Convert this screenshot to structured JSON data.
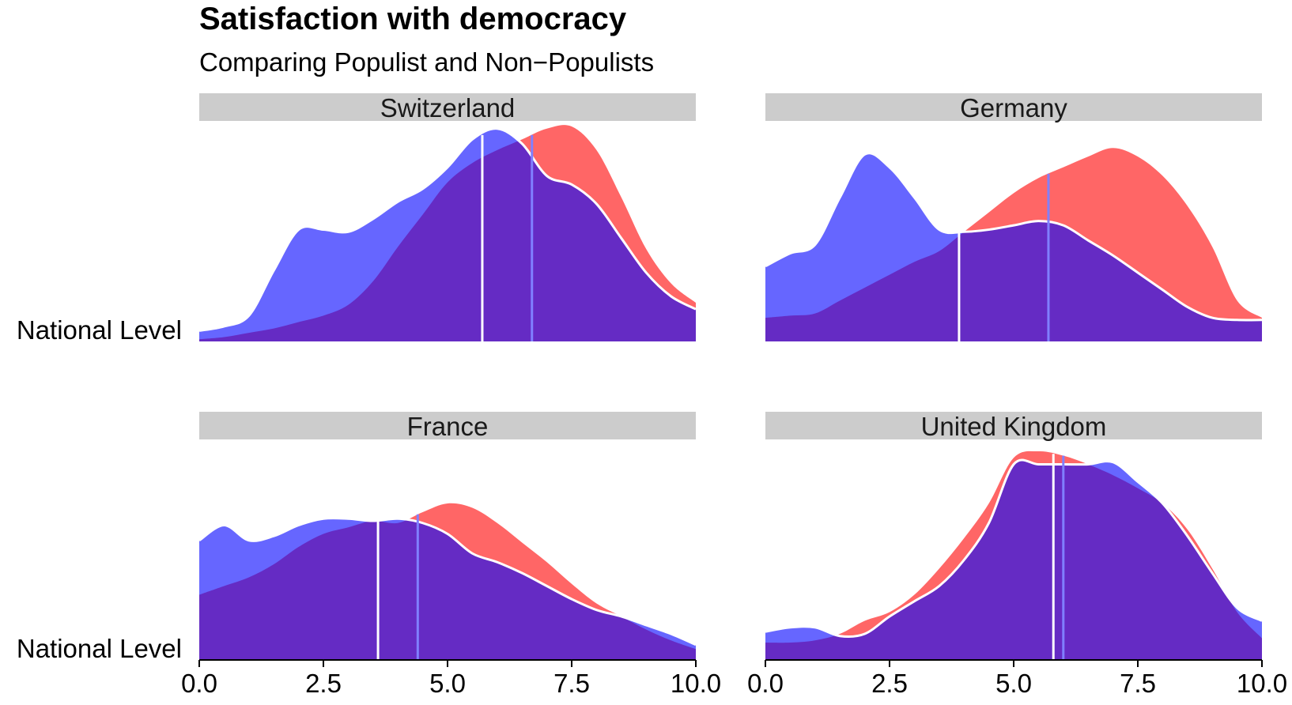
{
  "chart_data": {
    "type": "area",
    "title": "Satisfaction with democracy",
    "subtitle": "Comparing Populist and Non−Populists",
    "row_label": "National Level",
    "xlim": [
      0,
      10
    ],
    "x_ticks": [
      {
        "value": 0,
        "label": "0.0"
      },
      {
        "value": 2.5,
        "label": "2.5"
      },
      {
        "value": 5,
        "label": "5.0"
      },
      {
        "value": 7.5,
        "label": "7.5"
      },
      {
        "value": 10,
        "label": "10.0"
      }
    ],
    "colors": {
      "blue_series": "#6666ff",
      "red_series": "#ff6666",
      "overlap": "#652bc4",
      "strip": "#cccccc",
      "median_line": "#ffffff",
      "blue_median_line": "#8080ff"
    },
    "panels": [
      {
        "name": "Switzerland",
        "blue": {
          "x": [
            0,
            0.5,
            1,
            1.5,
            2,
            2.5,
            3,
            3.5,
            4,
            4.5,
            5,
            5.5,
            6,
            6.5,
            7,
            7.5,
            8,
            8.5,
            9,
            9.5,
            10
          ],
          "y": [
            0.05,
            0.07,
            0.12,
            0.33,
            0.52,
            0.52,
            0.51,
            0.57,
            0.65,
            0.71,
            0.81,
            0.94,
            0.99,
            0.92,
            0.77,
            0.73,
            0.64,
            0.48,
            0.32,
            0.21,
            0.15
          ]
        },
        "red": {
          "x": [
            0,
            0.5,
            1,
            1.5,
            2,
            2.5,
            3,
            3.5,
            4,
            4.5,
            5,
            5.5,
            6,
            6.5,
            7,
            7.5,
            8,
            8.5,
            9,
            9.5,
            10
          ],
          "y": [
            0.01,
            0.02,
            0.04,
            0.06,
            0.09,
            0.12,
            0.17,
            0.28,
            0.44,
            0.59,
            0.74,
            0.83,
            0.89,
            0.94,
            0.99,
            1.0,
            0.89,
            0.67,
            0.43,
            0.27,
            0.18
          ]
        },
        "medians": [
          5.7,
          6.7
        ]
      },
      {
        "name": "Germany",
        "blue": {
          "x": [
            0,
            0.5,
            1,
            1.5,
            2,
            2.5,
            3,
            3.5,
            4,
            4.5,
            5,
            5.5,
            6,
            6.5,
            7,
            7.5,
            8,
            8.5,
            9,
            9.5,
            10
          ],
          "y": [
            0.35,
            0.41,
            0.45,
            0.67,
            0.87,
            0.81,
            0.67,
            0.52,
            0.51,
            0.52,
            0.54,
            0.56,
            0.54,
            0.47,
            0.4,
            0.32,
            0.24,
            0.16,
            0.11,
            0.1,
            0.1
          ]
        },
        "red": {
          "x": [
            0,
            0.5,
            1,
            1.5,
            2,
            2.5,
            3,
            3.5,
            4,
            4.5,
            5,
            5.5,
            6,
            6.5,
            7,
            7.5,
            8,
            8.5,
            9,
            9.5,
            10
          ],
          "y": [
            0.11,
            0.12,
            0.13,
            0.19,
            0.25,
            0.31,
            0.37,
            0.42,
            0.51,
            0.6,
            0.69,
            0.76,
            0.81,
            0.86,
            0.9,
            0.86,
            0.77,
            0.63,
            0.44,
            0.19,
            0.11
          ]
        },
        "medians": [
          3.9,
          5.7
        ]
      },
      {
        "name": "France",
        "blue": {
          "x": [
            0,
            0.5,
            1,
            1.5,
            2,
            2.5,
            3,
            3.5,
            4,
            4.5,
            5,
            5.5,
            6,
            6.5,
            7,
            7.5,
            8,
            8.5,
            9,
            9.5,
            10
          ],
          "y": [
            0.55,
            0.62,
            0.55,
            0.57,
            0.62,
            0.65,
            0.65,
            0.64,
            0.65,
            0.63,
            0.58,
            0.49,
            0.45,
            0.4,
            0.34,
            0.28,
            0.23,
            0.2,
            0.16,
            0.12,
            0.07
          ]
        },
        "red": {
          "x": [
            0,
            0.5,
            1,
            1.5,
            2,
            2.5,
            3,
            3.5,
            4,
            4.5,
            5,
            5.5,
            6,
            6.5,
            7,
            7.5,
            8,
            8.5,
            9,
            9.5,
            10
          ],
          "y": [
            0.3,
            0.34,
            0.38,
            0.44,
            0.52,
            0.58,
            0.61,
            0.64,
            0.63,
            0.68,
            0.72,
            0.7,
            0.63,
            0.54,
            0.45,
            0.35,
            0.26,
            0.2,
            0.14,
            0.09,
            0.05
          ]
        },
        "medians": [
          3.6,
          4.4
        ]
      },
      {
        "name": "United Kingdom",
        "blue": {
          "x": [
            0,
            0.5,
            1,
            1.5,
            2,
            2.5,
            3,
            3.5,
            4,
            4.5,
            5,
            5.5,
            6,
            6.5,
            7,
            7.5,
            8,
            8.5,
            9,
            9.5,
            10
          ],
          "y": [
            0.13,
            0.15,
            0.15,
            0.11,
            0.12,
            0.2,
            0.27,
            0.34,
            0.46,
            0.63,
            0.9,
            0.9,
            0.9,
            0.9,
            0.91,
            0.82,
            0.72,
            0.57,
            0.4,
            0.24,
            0.18
          ]
        },
        "red": {
          "x": [
            0,
            0.5,
            1,
            1.5,
            2,
            2.5,
            3,
            3.5,
            4,
            4.5,
            5,
            5.5,
            6,
            6.5,
            7,
            7.5,
            8,
            8.5,
            9,
            9.5,
            10
          ],
          "y": [
            0.08,
            0.08,
            0.09,
            0.12,
            0.18,
            0.22,
            0.3,
            0.42,
            0.56,
            0.72,
            0.93,
            0.96,
            0.94,
            0.9,
            0.85,
            0.79,
            0.72,
            0.6,
            0.42,
            0.22,
            0.1
          ]
        },
        "medians": [
          5.8,
          6.0
        ]
      }
    ]
  }
}
